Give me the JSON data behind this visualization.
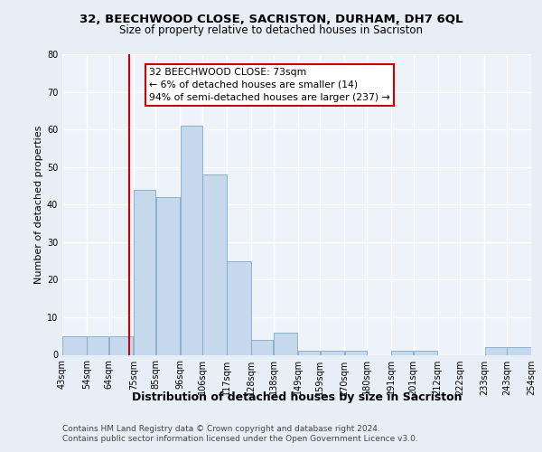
{
  "title1": "32, BEECHWOOD CLOSE, SACRISTON, DURHAM, DH7 6QL",
  "title2": "Size of property relative to detached houses in Sacriston",
  "xlabel": "Distribution of detached houses by size in Sacriston",
  "ylabel": "Number of detached properties",
  "footer1": "Contains HM Land Registry data © Crown copyright and database right 2024.",
  "footer2": "Contains public sector information licensed under the Open Government Licence v3.0.",
  "annotation_line1": "32 BEECHWOOD CLOSE: 73sqm",
  "annotation_line2": "← 6% of detached houses are smaller (14)",
  "annotation_line3": "94% of semi-detached houses are larger (237) →",
  "property_size": 73,
  "bar_left_edges": [
    43,
    54,
    64,
    75,
    85,
    96,
    106,
    117,
    128,
    138,
    149,
    159,
    170,
    180,
    191,
    201,
    212,
    222,
    233,
    243
  ],
  "bar_widths": [
    11,
    10,
    11,
    10,
    11,
    10,
    11,
    11,
    10,
    11,
    10,
    11,
    10,
    11,
    10,
    11,
    10,
    11,
    10,
    11
  ],
  "bar_heights": [
    5,
    5,
    5,
    44,
    42,
    61,
    48,
    25,
    4,
    6,
    1,
    1,
    1,
    0,
    1,
    1,
    0,
    0,
    2,
    2
  ],
  "bar_color": "#c5d8ec",
  "bar_edge_color": "#7fa8c9",
  "vline_color": "#cc0000",
  "vline_x": 73,
  "ylim": [
    0,
    80
  ],
  "xlim": [
    43,
    254
  ],
  "yticks": [
    0,
    10,
    20,
    30,
    40,
    50,
    60,
    70,
    80
  ],
  "xtick_labels": [
    "43sqm",
    "54sqm",
    "64sqm",
    "75sqm",
    "85sqm",
    "96sqm",
    "106sqm",
    "117sqm",
    "128sqm",
    "138sqm",
    "149sqm",
    "159sqm",
    "170sqm",
    "180sqm",
    "191sqm",
    "201sqm",
    "212sqm",
    "222sqm",
    "233sqm",
    "243sqm",
    "254sqm"
  ],
  "xtick_positions": [
    43,
    54,
    64,
    75,
    85,
    96,
    106,
    117,
    128,
    138,
    149,
    159,
    170,
    180,
    191,
    201,
    212,
    222,
    233,
    243,
    254
  ],
  "bg_color": "#e8eef5",
  "plot_bg_color": "#eef3f9",
  "grid_color": "#ffffff",
  "title1_fontsize": 9.5,
  "title2_fontsize": 8.5,
  "ylabel_fontsize": 8,
  "xlabel_fontsize": 9,
  "tick_fontsize": 7,
  "footer_fontsize": 6.5
}
